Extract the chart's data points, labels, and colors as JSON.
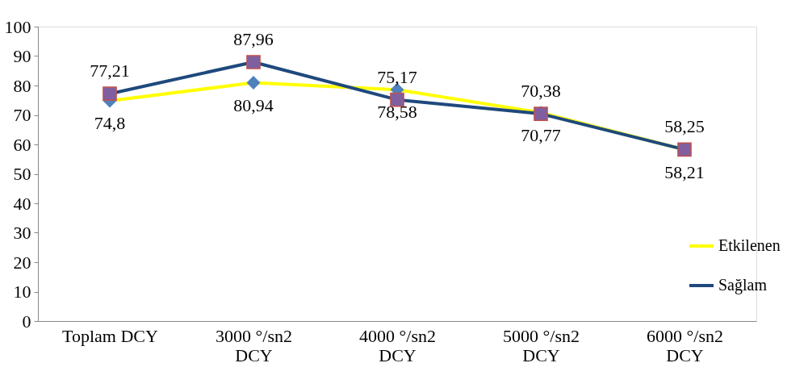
{
  "chart_data": {
    "type": "line",
    "categories": [
      "Toplam DCY",
      "3000 °/sn2 DCY",
      "4000 °/sn2 DCY",
      "5000 °/sn2 DCY",
      "6000 °/sn2 DCY"
    ],
    "series": [
      {
        "name": "Etkilenen",
        "color": "#ffff00",
        "marker": "diamond",
        "values": [
          74.8,
          80.94,
          78.58,
          70.77,
          58.21
        ],
        "value_labels": [
          "74,8",
          "80,94",
          "78,58",
          "70,77",
          "58,21"
        ]
      },
      {
        "name": "Sağlam",
        "color": "#1f497d",
        "marker": "square",
        "values": [
          77.21,
          87.96,
          75.17,
          70.38,
          58.25
        ],
        "value_labels": [
          "77,21",
          "87,96",
          "75,17",
          "70,38",
          "58,25"
        ]
      }
    ],
    "ylim": [
      0,
      100
    ],
    "yticks": [
      0,
      10,
      20,
      30,
      40,
      50,
      60,
      70,
      80,
      90,
      100
    ],
    "grid": false,
    "legend": "right",
    "line_style": "solid"
  }
}
